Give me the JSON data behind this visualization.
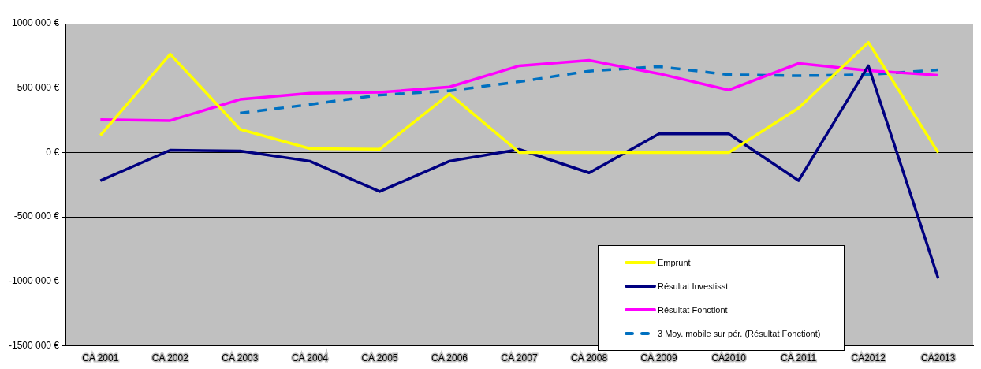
{
  "chart_data": {
    "type": "line",
    "categories": [
      "CA 2001",
      "CA 2002",
      "CA 2003",
      "CA 2004",
      "CA 2005",
      "CA 2006",
      "CA 2007",
      "CA 2008",
      "CA 2009",
      "CA2010",
      "CA 2011",
      "CA2012",
      "CA2013"
    ],
    "series": [
      {
        "name": "Emprunt",
        "color": "#ffff00",
        "values": [
          133000,
          764000,
          180000,
          30000,
          25000,
          455000,
          0,
          0,
          0,
          0,
          345000,
          855000,
          0
        ]
      },
      {
        "name": "Résultat Investisst",
        "color": "#000080",
        "values": [
          -218000,
          18000,
          12000,
          -67000,
          -303000,
          -67000,
          24000,
          -158000,
          145000,
          145000,
          -218000,
          673000,
          -976000
        ]
      },
      {
        "name": "Résultat Fonctiont",
        "color": "#ff00ff",
        "values": [
          255000,
          248000,
          412000,
          460000,
          467000,
          509000,
          673000,
          715000,
          612000,
          485000,
          691000,
          636000,
          600000
        ]
      },
      {
        "name": "3 Moy. mobile sur pér. (Résultat Fonctiont)",
        "color": "#0070c0",
        "line_style": "dashed",
        "values": [
          null,
          null,
          305000,
          373000,
          446000,
          479000,
          550000,
          632000,
          667000,
          604000,
          596000,
          604000,
          642000
        ]
      }
    ],
    "ylim": [
      -1500000,
      1000000
    ],
    "yticks": [
      {
        "value": -1500000,
        "label": "-1500 000 €"
      },
      {
        "value": -1000000,
        "label": "-1000 000 €"
      },
      {
        "value": -500000,
        "label": "-500 000 €"
      },
      {
        "value": 0,
        "label": "0 €"
      },
      {
        "value": 500000,
        "label": "500 000 €"
      },
      {
        "value": 1000000,
        "label": "1000 000 €"
      }
    ],
    "grid": "y",
    "legend": "bottom right",
    "marker": "none",
    "line_style": "solid"
  }
}
